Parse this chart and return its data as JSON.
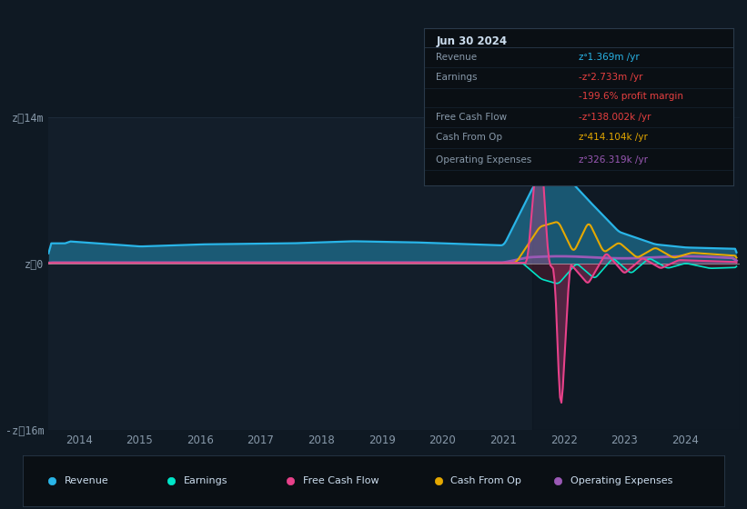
{
  "bg_color": "#0f1923",
  "plot_bg_color": "#131e2a",
  "grid_color": "#1e2d3d",
  "ylim": [
    -16000000,
    14000000
  ],
  "yticks": [
    -16000000,
    0,
    14000000
  ],
  "ytick_labels": [
    "-zᐤ16m",
    "zᐤ0",
    "zᐤ14m"
  ],
  "xlabel_years": [
    2014,
    2015,
    2016,
    2017,
    2018,
    2019,
    2020,
    2021,
    2022,
    2023,
    2024
  ],
  "colors": {
    "revenue": "#29b5e8",
    "earnings": "#00e5c8",
    "free_cash_flow": "#e8418a",
    "cash_from_op": "#e5a800",
    "operating_expenses": "#9b59b6"
  },
  "info_box": {
    "date": "Jun 30 2024",
    "revenue_label": "Revenue",
    "revenue_val": "zᐤ1.369m /yr",
    "revenue_color": "#29b5e8",
    "earnings_label": "Earnings",
    "earnings_val": "-zᐤ2.733m /yr",
    "earnings_color": "#e84040",
    "profit_margin_val": "-199.6% profit margin",
    "profit_margin_color": "#e84040",
    "fcf_label": "Free Cash Flow",
    "fcf_val": "-zᐤ138.002k /yr",
    "fcf_color": "#e84040",
    "cash_from_op_label": "Cash From Op",
    "cash_from_op_val": "zᐤ414.104k /yr",
    "cash_from_op_color": "#e5a800",
    "op_exp_label": "Operating Expenses",
    "op_exp_val": "zᐤ326.319k /yr",
    "op_exp_color": "#9b59b6"
  },
  "legend": [
    {
      "label": "Revenue",
      "color": "#29b5e8"
    },
    {
      "label": "Earnings",
      "color": "#00e5c8"
    },
    {
      "label": "Free Cash Flow",
      "color": "#e8418a"
    },
    {
      "label": "Cash From Op",
      "color": "#e5a800"
    },
    {
      "label": "Operating Expenses",
      "color": "#9b59b6"
    }
  ]
}
